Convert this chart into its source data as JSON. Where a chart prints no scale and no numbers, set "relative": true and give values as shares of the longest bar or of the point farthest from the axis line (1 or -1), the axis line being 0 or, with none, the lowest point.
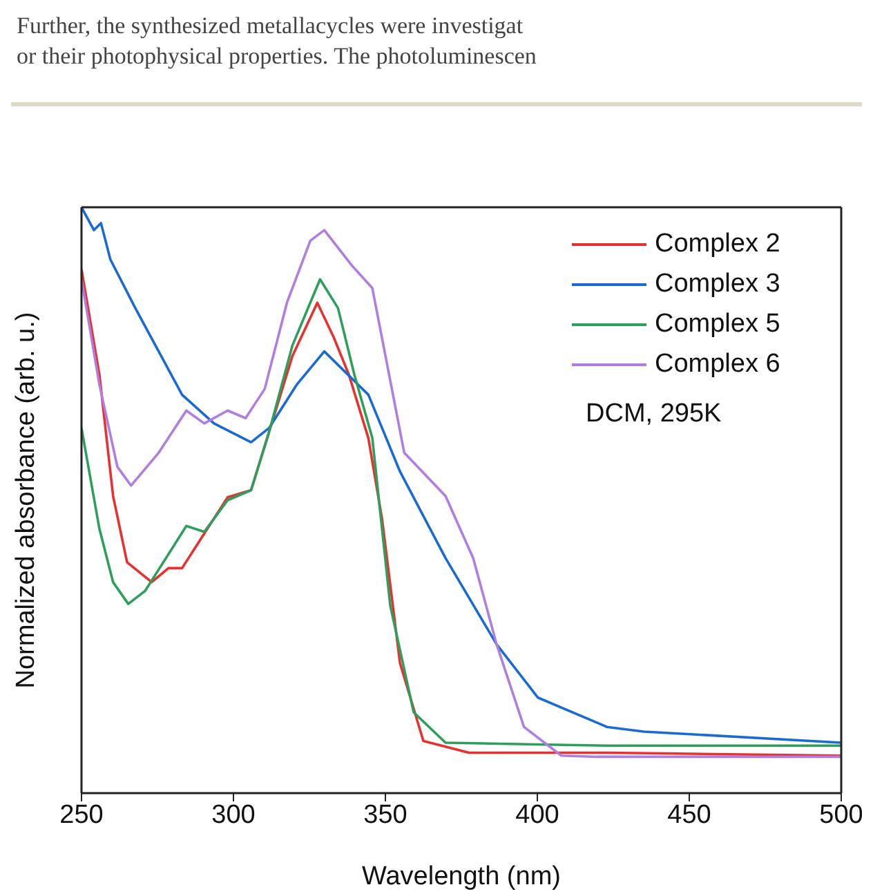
{
  "chart_data": {
    "type": "line",
    "xlabel": "Wavelength (nm)",
    "ylabel": "Normalized absorbance (arb. u.)",
    "relative": true,
    "xlim": [
      250,
      500
    ],
    "xticks": [
      250,
      300,
      350,
      400,
      450,
      500
    ],
    "legend": "top right",
    "annotations": [
      "Further, the synthesized metallacycles were investigat",
      "or their photophysical properties. The photoluminescen",
      "DCM, 295K"
    ],
    "series": [
      {
        "name": "Complex 2",
        "color": "#e8312f",
        "x": [
          250,
          255.9,
          260.4,
          265.0,
          273.1,
          278.6,
          283.1,
          290.4,
          298.1,
          305.8,
          311.7,
          319.4,
          327.6,
          333.0,
          338.0,
          344.4,
          348.9,
          354.8,
          362.5,
          377.5,
          422.9,
          500
        ],
        "values": [
          0.894,
          0.714,
          0.507,
          0.394,
          0.36,
          0.384,
          0.384,
          0.443,
          0.505,
          0.517,
          0.616,
          0.746,
          0.837,
          0.778,
          0.714,
          0.606,
          0.468,
          0.222,
          0.089,
          0.069,
          0.069,
          0.064
        ]
      },
      {
        "name": "Complex 3",
        "color": "#1a6ad6",
        "x": [
          250,
          254.1,
          256.4,
          259.5,
          267.7,
          275.4,
          283.1,
          293.6,
          305.8,
          311.7,
          320.8,
          329.9,
          344.4,
          354.8,
          369.8,
          386.6,
          400.2,
          422.9,
          435.1,
          500
        ],
        "values": [
          1.0,
          0.961,
          0.973,
          0.911,
          0.828,
          0.754,
          0.68,
          0.631,
          0.599,
          0.623,
          0.697,
          0.754,
          0.68,
          0.549,
          0.401,
          0.254,
          0.163,
          0.113,
          0.105,
          0.086
        ]
      },
      {
        "name": "Complex 5",
        "color": "#2e9e5b",
        "x": [
          250,
          255.9,
          260.4,
          265.4,
          270.9,
          276.3,
          284.5,
          290.4,
          298.1,
          305.8,
          311.7,
          319.4,
          328.5,
          334.4,
          339.8,
          345.7,
          351.6,
          359.3,
          369.8,
          422.9,
          500
        ],
        "values": [
          0.623,
          0.451,
          0.36,
          0.323,
          0.345,
          0.389,
          0.456,
          0.446,
          0.5,
          0.517,
          0.616,
          0.764,
          0.877,
          0.828,
          0.714,
          0.606,
          0.32,
          0.138,
          0.086,
          0.081,
          0.081
        ]
      },
      {
        "name": "Complex 6",
        "color": "#b07de0",
        "x": [
          250,
          255.9,
          261.8,
          266.3,
          275.4,
          284.5,
          290.4,
          298.1,
          304.0,
          310.3,
          317.6,
          325.3,
          329.9,
          338.9,
          345.7,
          356.2,
          369.8,
          378.9,
          386.6,
          395.6,
          407.9,
          419.7,
          500
        ],
        "values": [
          0.877,
          0.697,
          0.557,
          0.525,
          0.581,
          0.653,
          0.631,
          0.653,
          0.64,
          0.69,
          0.837,
          0.943,
          0.961,
          0.901,
          0.862,
          0.581,
          0.507,
          0.401,
          0.254,
          0.113,
          0.064,
          0.062,
          0.062
        ]
      }
    ]
  }
}
